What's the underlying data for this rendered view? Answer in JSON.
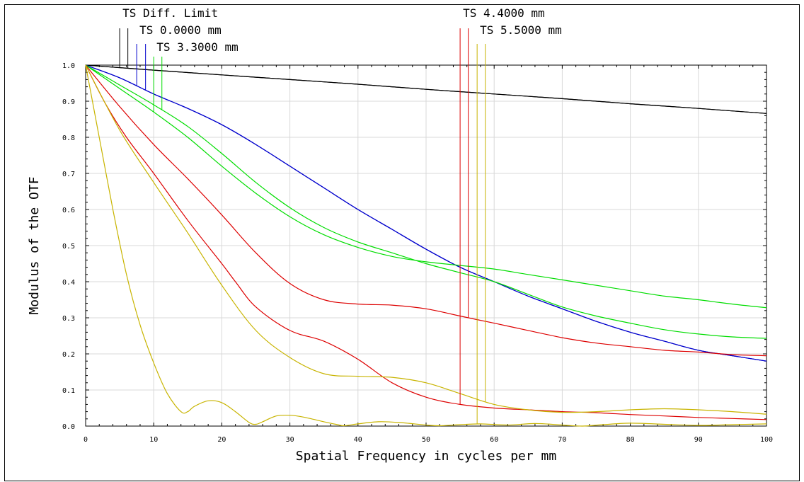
{
  "chart_data": {
    "type": "line",
    "xlabel": "Spatial Frequency in cycles per mm",
    "ylabel": "Modulus of the OTF",
    "xlim": [
      0,
      100
    ],
    "ylim": [
      0,
      1.0
    ],
    "xticks": [
      0,
      10,
      20,
      30,
      40,
      50,
      60,
      70,
      80,
      90,
      100
    ],
    "yticks": [
      "0.0",
      "0.1",
      "0.2",
      "0.3",
      "0.4",
      "0.5",
      "0.6",
      "0.7",
      "0.8",
      "0.9",
      "1.0"
    ],
    "grid": true,
    "legend_position": "top",
    "series": [
      {
        "name": "TS Diff. Limit",
        "color": "#000000",
        "label_x": 5.0,
        "curves": [
          {
            "role": "T",
            "marker_x": 5.0,
            "points": [
              [
                0,
                1.0
              ],
              [
                10,
                0.986
              ],
              [
                20,
                0.973
              ],
              [
                30,
                0.96
              ],
              [
                40,
                0.947
              ],
              [
                50,
                0.933
              ],
              [
                60,
                0.92
              ],
              [
                70,
                0.907
              ],
              [
                80,
                0.893
              ],
              [
                90,
                0.88
              ],
              [
                100,
                0.866
              ]
            ]
          },
          {
            "role": "S",
            "marker_x": 6.2,
            "points": [
              [
                0,
                1.0
              ],
              [
                10,
                0.986
              ],
              [
                20,
                0.973
              ],
              [
                30,
                0.96
              ],
              [
                40,
                0.947
              ],
              [
                50,
                0.933
              ],
              [
                60,
                0.92
              ],
              [
                70,
                0.907
              ],
              [
                80,
                0.893
              ],
              [
                90,
                0.88
              ],
              [
                100,
                0.866
              ]
            ]
          }
        ]
      },
      {
        "name": "TS 0.0000 mm",
        "color": "#0000cc",
        "label_x": 7.5,
        "curves": [
          {
            "role": "T",
            "marker_x": 7.5,
            "points": [
              [
                0,
                1.0
              ],
              [
                5,
                0.965
              ],
              [
                10,
                0.92
              ],
              [
                15,
                0.88
              ],
              [
                20,
                0.835
              ],
              [
                25,
                0.78
              ],
              [
                30,
                0.72
              ],
              [
                35,
                0.66
              ],
              [
                40,
                0.6
              ],
              [
                45,
                0.545
              ],
              [
                50,
                0.49
              ],
              [
                55,
                0.44
              ],
              [
                60,
                0.4
              ],
              [
                65,
                0.36
              ],
              [
                70,
                0.325
              ],
              [
                75,
                0.29
              ],
              [
                80,
                0.26
              ],
              [
                85,
                0.235
              ],
              [
                90,
                0.21
              ],
              [
                95,
                0.195
              ],
              [
                100,
                0.18
              ]
            ]
          },
          {
            "role": "S",
            "marker_x": 8.8,
            "points": [
              [
                0,
                1.0
              ],
              [
                5,
                0.965
              ],
              [
                10,
                0.92
              ],
              [
                15,
                0.88
              ],
              [
                20,
                0.835
              ],
              [
                25,
                0.78
              ],
              [
                30,
                0.72
              ],
              [
                35,
                0.66
              ],
              [
                40,
                0.6
              ],
              [
                45,
                0.545
              ],
              [
                50,
                0.49
              ],
              [
                55,
                0.44
              ],
              [
                60,
                0.4
              ],
              [
                65,
                0.36
              ],
              [
                70,
                0.325
              ],
              [
                75,
                0.29
              ],
              [
                80,
                0.26
              ],
              [
                85,
                0.235
              ],
              [
                90,
                0.21
              ],
              [
                95,
                0.195
              ],
              [
                100,
                0.18
              ]
            ]
          }
        ]
      },
      {
        "name": "TS 3.3000 mm",
        "color": "#00dd00",
        "label_x": 10.0,
        "curves": [
          {
            "role": "T",
            "marker_x": 10.0,
            "points": [
              [
                0,
                1.0
              ],
              [
                5,
                0.935
              ],
              [
                10,
                0.87
              ],
              [
                15,
                0.8
              ],
              [
                20,
                0.72
              ],
              [
                25,
                0.645
              ],
              [
                30,
                0.58
              ],
              [
                35,
                0.53
              ],
              [
                40,
                0.495
              ],
              [
                45,
                0.47
              ],
              [
                50,
                0.455
              ],
              [
                55,
                0.445
              ],
              [
                60,
                0.435
              ],
              [
                65,
                0.42
              ],
              [
                70,
                0.405
              ],
              [
                75,
                0.39
              ],
              [
                80,
                0.375
              ],
              [
                85,
                0.36
              ],
              [
                90,
                0.35
              ],
              [
                95,
                0.338
              ],
              [
                100,
                0.328
              ]
            ]
          },
          {
            "role": "S",
            "marker_x": 11.2,
            "points": [
              [
                0,
                1.0
              ],
              [
                5,
                0.945
              ],
              [
                10,
                0.89
              ],
              [
                15,
                0.83
              ],
              [
                20,
                0.755
              ],
              [
                25,
                0.675
              ],
              [
                30,
                0.605
              ],
              [
                35,
                0.55
              ],
              [
                40,
                0.51
              ],
              [
                45,
                0.48
              ],
              [
                50,
                0.45
              ],
              [
                55,
                0.425
              ],
              [
                60,
                0.4
              ],
              [
                65,
                0.365
              ],
              [
                70,
                0.33
              ],
              [
                75,
                0.305
              ],
              [
                80,
                0.285
              ],
              [
                85,
                0.267
              ],
              [
                90,
                0.255
              ],
              [
                95,
                0.247
              ],
              [
                100,
                0.243
              ]
            ]
          }
        ]
      },
      {
        "name": "TS 4.4000 mm",
        "color": "#dd0000",
        "label_x": 55.0,
        "curves": [
          {
            "role": "T",
            "marker_x": 55.0,
            "points": [
              [
                0,
                1.0
              ],
              [
                3,
                0.89
              ],
              [
                6,
                0.8
              ],
              [
                10,
                0.7
              ],
              [
                15,
                0.57
              ],
              [
                20,
                0.45
              ],
              [
                22,
                0.4
              ],
              [
                25,
                0.33
              ],
              [
                30,
                0.265
              ],
              [
                35,
                0.235
              ],
              [
                40,
                0.185
              ],
              [
                45,
                0.12
              ],
              [
                50,
                0.08
              ],
              [
                55,
                0.06
              ],
              [
                60,
                0.05
              ],
              [
                65,
                0.045
              ],
              [
                70,
                0.04
              ],
              [
                75,
                0.037
              ],
              [
                80,
                0.032
              ],
              [
                85,
                0.028
              ],
              [
                90,
                0.024
              ],
              [
                95,
                0.021
              ],
              [
                100,
                0.018
              ]
            ]
          },
          {
            "role": "S",
            "marker_x": 56.2,
            "points": [
              [
                0,
                1.0
              ],
              [
                5,
                0.885
              ],
              [
                10,
                0.78
              ],
              [
                15,
                0.685
              ],
              [
                20,
                0.585
              ],
              [
                25,
                0.48
              ],
              [
                30,
                0.395
              ],
              [
                35,
                0.35
              ],
              [
                40,
                0.338
              ],
              [
                45,
                0.335
              ],
              [
                50,
                0.325
              ],
              [
                55,
                0.305
              ],
              [
                60,
                0.285
              ],
              [
                65,
                0.265
              ],
              [
                70,
                0.245
              ],
              [
                75,
                0.23
              ],
              [
                80,
                0.22
              ],
              [
                85,
                0.21
              ],
              [
                90,
                0.205
              ],
              [
                95,
                0.198
              ],
              [
                100,
                0.195
              ]
            ]
          }
        ]
      },
      {
        "name": "TS 5.5000 mm",
        "color": "#c8b400",
        "label_x": 57.5,
        "curves": [
          {
            "role": "T",
            "marker_x": 57.5,
            "points": [
              [
                0,
                1.0
              ],
              [
                2,
                0.8
              ],
              [
                4,
                0.6
              ],
              [
                6,
                0.42
              ],
              [
                8,
                0.28
              ],
              [
                10,
                0.175
              ],
              [
                12,
                0.09
              ],
              [
                14,
                0.04
              ],
              [
                15,
                0.04
              ],
              [
                16,
                0.055
              ],
              [
                18,
                0.07
              ],
              [
                20,
                0.065
              ],
              [
                22,
                0.04
              ],
              [
                24,
                0.01
              ],
              [
                25,
                0.005
              ],
              [
                26,
                0.012
              ],
              [
                28,
                0.028
              ],
              [
                30,
                0.03
              ],
              [
                32,
                0.025
              ],
              [
                35,
                0.012
              ],
              [
                37,
                0.004
              ],
              [
                38,
                0.001
              ],
              [
                40,
                0.006
              ],
              [
                43,
                0.012
              ],
              [
                46,
                0.01
              ],
              [
                50,
                0.003
              ],
              [
                52,
                0.001
              ],
              [
                55,
                0.004
              ],
              [
                58,
                0.006
              ],
              [
                62,
                0.003
              ],
              [
                66,
                0.007
              ],
              [
                70,
                0.003
              ],
              [
                73,
                0.0
              ],
              [
                76,
                0.004
              ],
              [
                80,
                0.008
              ],
              [
                85,
                0.005
              ],
              [
                90,
                0.002
              ],
              [
                95,
                0.004
              ],
              [
                100,
                0.006
              ]
            ]
          },
          {
            "role": "S",
            "marker_x": 58.7,
            "points": [
              [
                0,
                1.0
              ],
              [
                5,
                0.82
              ],
              [
                10,
                0.675
              ],
              [
                15,
                0.535
              ],
              [
                20,
                0.39
              ],
              [
                25,
                0.265
              ],
              [
                30,
                0.19
              ],
              [
                35,
                0.145
              ],
              [
                40,
                0.138
              ],
              [
                45,
                0.135
              ],
              [
                50,
                0.12
              ],
              [
                55,
                0.09
              ],
              [
                60,
                0.06
              ],
              [
                65,
                0.045
              ],
              [
                70,
                0.038
              ],
              [
                75,
                0.04
              ],
              [
                80,
                0.045
              ],
              [
                85,
                0.048
              ],
              [
                90,
                0.045
              ],
              [
                95,
                0.04
              ],
              [
                100,
                0.033
              ]
            ]
          }
        ]
      }
    ]
  }
}
